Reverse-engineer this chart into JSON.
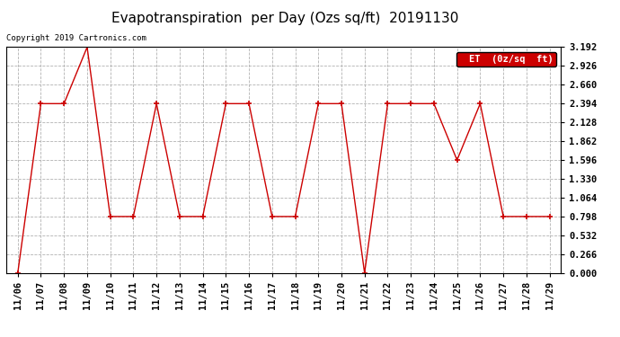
{
  "title": "Evapotranspiration  per Day (Ozs sq/ft)  20191130",
  "copyright": "Copyright 2019 Cartronics.com",
  "legend_label": "ET  (0z/sq  ft)",
  "x_labels": [
    "11/06",
    "11/07",
    "11/08",
    "11/09",
    "11/10",
    "11/11",
    "11/12",
    "11/13",
    "11/14",
    "11/15",
    "11/16",
    "11/17",
    "11/18",
    "11/19",
    "11/20",
    "11/21",
    "11/22",
    "11/23",
    "11/24",
    "11/25",
    "11/26",
    "11/27",
    "11/28",
    "11/29"
  ],
  "y_values": [
    0.0,
    2.394,
    2.394,
    3.192,
    0.798,
    0.798,
    2.394,
    0.798,
    0.798,
    2.394,
    2.394,
    0.798,
    0.798,
    2.394,
    2.394,
    0.0,
    2.394,
    2.394,
    2.394,
    1.596,
    2.394,
    0.798,
    0.798,
    0.798
  ],
  "ylim": [
    0.0,
    3.192
  ],
  "yticks": [
    0.0,
    0.266,
    0.532,
    0.798,
    1.064,
    1.33,
    1.596,
    1.862,
    2.128,
    2.394,
    2.66,
    2.926,
    3.192
  ],
  "line_color": "#cc0000",
  "marker_color": "#cc0000",
  "background_color": "#ffffff",
  "grid_color": "#aaaaaa",
  "title_fontsize": 11,
  "tick_fontsize": 7.5,
  "copyright_fontsize": 6.5,
  "legend_bg": "#cc0000",
  "legend_text_color": "#ffffff",
  "legend_fontsize": 7.5
}
